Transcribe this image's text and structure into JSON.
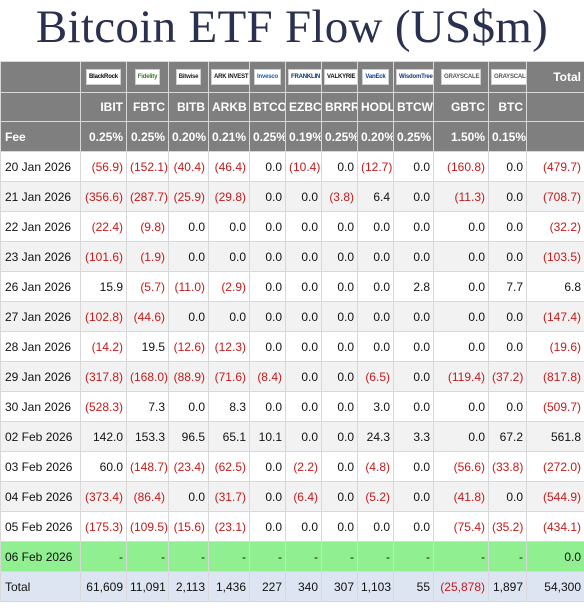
{
  "title": "Bitcoin ETF Flow (US$m)",
  "brands": [
    {
      "label": "BlackRock",
      "color": "#000000"
    },
    {
      "label": "Fidelity",
      "color": "#3a7a2a"
    },
    {
      "label": "Bitwise",
      "color": "#222222"
    },
    {
      "label": "ARK INVEST",
      "color": "#111111"
    },
    {
      "label": "Invesco",
      "color": "#1f5aa8"
    },
    {
      "label": "FRANKLIN TEMPLETON",
      "color": "#003366"
    },
    {
      "label": "VALKYRIE",
      "color": "#111111"
    },
    {
      "label": "VanEck",
      "color": "#0a3a8a"
    },
    {
      "label": "WisdomTree",
      "color": "#1a3a7a"
    },
    {
      "label": "GRAYSCALE",
      "color": "#555555"
    },
    {
      "label": "GRAYSCALE",
      "color": "#555555"
    }
  ],
  "total_header": "Total",
  "tickers": [
    "IBIT",
    "FBTC",
    "BITB",
    "ARKB",
    "BTCO",
    "EZBC",
    "BRRR",
    "HODL",
    "BTCW",
    "GBTC",
    "BTC"
  ],
  "fee_label": "Fee",
  "fees": [
    "0.25%",
    "0.25%",
    "0.20%",
    "0.21%",
    "0.25%",
    "0.19%",
    "0.25%",
    "0.20%",
    "0.25%",
    "1.50%",
    "0.15%"
  ],
  "rows": [
    {
      "date": "20 Jan 2026",
      "values": [
        "(56.9)",
        "(152.1)",
        "(40.4)",
        "(46.4)",
        "0.0",
        "(10.4)",
        "0.0",
        "(12.7)",
        "0.0",
        "(160.8)",
        "0.0",
        "(479.7)"
      ]
    },
    {
      "date": "21 Jan 2026",
      "values": [
        "(356.6)",
        "(287.7)",
        "(25.9)",
        "(29.8)",
        "0.0",
        "0.0",
        "(3.8)",
        "6.4",
        "0.0",
        "(11.3)",
        "0.0",
        "(708.7)"
      ]
    },
    {
      "date": "22 Jan 2026",
      "values": [
        "(22.4)",
        "(9.8)",
        "0.0",
        "0.0",
        "0.0",
        "0.0",
        "0.0",
        "0.0",
        "0.0",
        "0.0",
        "0.0",
        "(32.2)"
      ]
    },
    {
      "date": "23 Jan 2026",
      "values": [
        "(101.6)",
        "(1.9)",
        "0.0",
        "0.0",
        "0.0",
        "0.0",
        "0.0",
        "0.0",
        "0.0",
        "0.0",
        "0.0",
        "(103.5)"
      ]
    },
    {
      "date": "26 Jan 2026",
      "values": [
        "15.9",
        "(5.7)",
        "(11.0)",
        "(2.9)",
        "0.0",
        "0.0",
        "0.0",
        "0.0",
        "2.8",
        "0.0",
        "7.7",
        "6.8"
      ]
    },
    {
      "date": "27 Jan 2026",
      "values": [
        "(102.8)",
        "(44.6)",
        "0.0",
        "0.0",
        "0.0",
        "0.0",
        "0.0",
        "0.0",
        "0.0",
        "0.0",
        "0.0",
        "(147.4)"
      ]
    },
    {
      "date": "28 Jan 2026",
      "values": [
        "(14.2)",
        "19.5",
        "(12.6)",
        "(12.3)",
        "0.0",
        "0.0",
        "0.0",
        "0.0",
        "0.0",
        "0.0",
        "0.0",
        "(19.6)"
      ]
    },
    {
      "date": "29 Jan 2026",
      "values": [
        "(317.8)",
        "(168.0)",
        "(88.9)",
        "(71.6)",
        "(8.4)",
        "0.0",
        "0.0",
        "(6.5)",
        "0.0",
        "(119.4)",
        "(37.2)",
        "(817.8)"
      ]
    },
    {
      "date": "30 Jan 2026",
      "values": [
        "(528.3)",
        "7.3",
        "0.0",
        "8.3",
        "0.0",
        "0.0",
        "0.0",
        "3.0",
        "0.0",
        "0.0",
        "0.0",
        "(509.7)"
      ]
    },
    {
      "date": "02 Feb 2026",
      "values": [
        "142.0",
        "153.3",
        "96.5",
        "65.1",
        "10.1",
        "0.0",
        "0.0",
        "24.3",
        "3.3",
        "0.0",
        "67.2",
        "561.8"
      ]
    },
    {
      "date": "03 Feb 2026",
      "values": [
        "60.0",
        "(148.7)",
        "(23.4)",
        "(62.5)",
        "0.0",
        "(2.2)",
        "0.0",
        "(4.8)",
        "0.0",
        "(56.6)",
        "(33.8)",
        "(272.0)"
      ]
    },
    {
      "date": "04 Feb 2026",
      "values": [
        "(373.4)",
        "(86.4)",
        "0.0",
        "(31.7)",
        "0.0",
        "(6.4)",
        "0.0",
        "(5.2)",
        "0.0",
        "(41.8)",
        "0.0",
        "(544.9)"
      ]
    },
    {
      "date": "05 Feb 2026",
      "values": [
        "(175.3)",
        "(109.5)",
        "(15.6)",
        "(23.1)",
        "0.0",
        "0.0",
        "0.0",
        "0.0",
        "0.0",
        "(75.4)",
        "(35.2)",
        "(434.1)"
      ]
    },
    {
      "date": "06 Feb 2026",
      "highlight": true,
      "values": [
        "-",
        "-",
        "-",
        "-",
        "-",
        "-",
        "-",
        "-",
        "-",
        "-",
        "-",
        "0.0"
      ]
    }
  ],
  "total_label": "Total",
  "totals": [
    "61,609",
    "11,091",
    "2,113",
    "1,436",
    "227",
    "340",
    "307",
    "1,103",
    "55",
    "(25,878)",
    "1,897",
    "54,300"
  ]
}
